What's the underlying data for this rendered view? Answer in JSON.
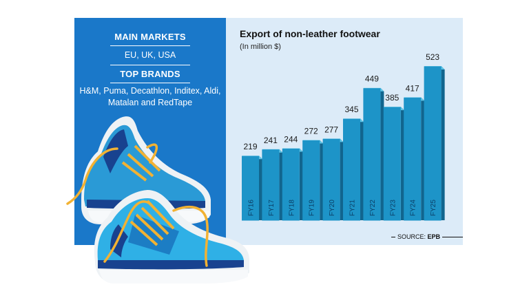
{
  "info_panel": {
    "markets_heading": "MAIN MARKETS",
    "markets_text": "EU, UK, USA",
    "brands_heading": "TOP BRANDS",
    "brands_text": "H&M, Puma, Decathlon, Inditex, Aldi, Matalan and RedTape"
  },
  "source": {
    "label": "SOURCE:",
    "value": "EPB"
  },
  "colors": {
    "panel_blue": "#1a78c9",
    "chart_bg": "#dcebf8",
    "bar_front": "#1d94c8",
    "bar_top": "#5ec4e6",
    "bar_side": "#11658e"
  },
  "illustration": "sneakers",
  "chart_data": {
    "type": "bar",
    "title": "Export of non-leather footwear",
    "subtitle": "(In million $)",
    "categories": [
      "FY16",
      "FY17",
      "FY18",
      "FY19",
      "FY20",
      "FY21",
      "FY22",
      "FY23",
      "FY24",
      "FY25"
    ],
    "values": [
      219,
      241,
      244,
      272,
      277,
      345,
      449,
      385,
      417,
      523
    ],
    "ylim": [
      0,
      523
    ],
    "grid": false,
    "legend": "none"
  }
}
